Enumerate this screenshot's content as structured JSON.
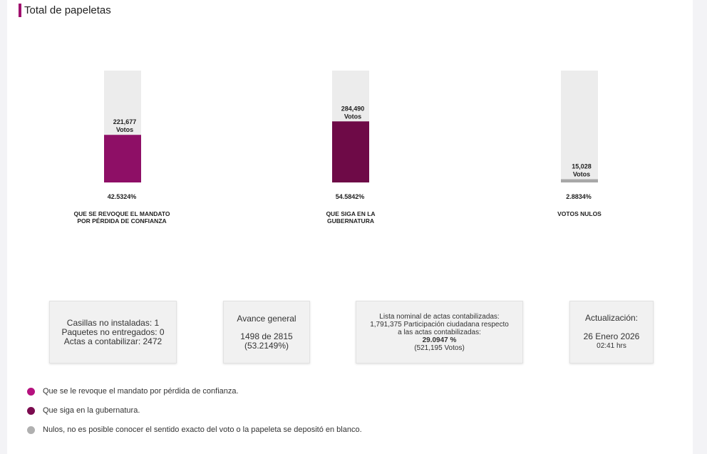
{
  "header": {
    "title": "Total de papeletas"
  },
  "chart_data": {
    "type": "bar",
    "categories": [
      "QUE SE REVOQUE EL MANDATO POR PÉRDIDA DE CONFIANZA",
      "QUE SIGA EN LA GUBERNATURA",
      "VOTOS NULOS"
    ],
    "values": [
      221677,
      284490,
      15028
    ],
    "value_labels": [
      "221,677",
      "284,490",
      "15,028"
    ],
    "unit_label": "Votos",
    "percentages": [
      "42.5324%",
      "54.5842%",
      "2.8834%"
    ],
    "percent_values": [
      42.5324,
      54.5842,
      2.8834
    ],
    "ylim": [
      0,
      100
    ],
    "colors": [
      "#8e0f66",
      "#6e0a47",
      "#a8a8a8"
    ],
    "track_color": "#ececec",
    "grid": false
  },
  "stats": {
    "box1": {
      "line1": "Casillas no instaladas: 1",
      "line2": "Paquetes no entregados: 0",
      "line3": "Actas a contabilizar: 2472"
    },
    "box2": {
      "title": "Avance general",
      "line1": "1498 de 2815",
      "line2": "(53.2149%)"
    },
    "box3": {
      "line1": "Lista nominal de actas contabilizadas:",
      "line2": "1,791,375 Participación ciudadana respecto",
      "line3": "a las actas contabilizadas:",
      "line4": "29.0947 %",
      "line5": "(521,195 Votos)"
    },
    "box4": {
      "title": "Actualización:",
      "date": "26 Enero 2026",
      "time": "02:41 hrs"
    }
  },
  "legend": [
    {
      "color": "#b5117e",
      "text": "Que se le revoque el mandato por pérdida de confianza."
    },
    {
      "color": "#7b0b4f",
      "text": "Que siga en la gubernatura."
    },
    {
      "color": "#b0b0b0",
      "text": "Nulos, no es posible conocer el sentido exacto del voto o la papeleta se depositó en blanco."
    }
  ]
}
